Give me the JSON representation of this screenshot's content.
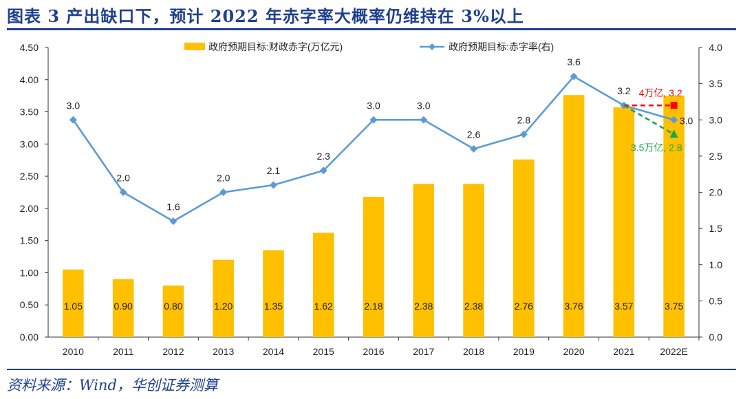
{
  "header": {
    "title": "图表 3 产出缺口下，预计 2022 年赤字率大概率仍维持在 3%以上"
  },
  "footer": {
    "source": "资料来源：Wind，华创证券测算"
  },
  "chart_data": {
    "type": "bar+line",
    "categories": [
      "2010",
      "2011",
      "2012",
      "2013",
      "2014",
      "2015",
      "2016",
      "2017",
      "2018",
      "2019",
      "2020",
      "2021",
      "2022E"
    ],
    "series": [
      {
        "name": "政府预期目标:财政赤字(万亿元)",
        "type": "bar",
        "axis": "left",
        "color": "#ffc000",
        "values": [
          1.05,
          0.9,
          0.8,
          1.2,
          1.35,
          1.62,
          2.18,
          2.38,
          2.38,
          2.76,
          3.76,
          3.57,
          3.75
        ],
        "labels": [
          "1.05",
          "0.90",
          "0.80",
          "1.20",
          "1.35",
          "1.62",
          "2.18",
          "2.38",
          "2.38",
          "2.76",
          "3.76",
          "3.57",
          "3.75"
        ]
      },
      {
        "name": "政府预期目标:赤字率(右)",
        "type": "line",
        "axis": "right",
        "color": "#5b9bd5",
        "values": [
          3.0,
          2.0,
          1.6,
          2.0,
          2.1,
          2.3,
          3.0,
          3.0,
          2.6,
          2.8,
          3.6,
          3.2,
          3.0
        ],
        "labels": [
          "3.0",
          "2.0",
          "1.6",
          "2.0",
          "2.1",
          "2.3",
          "3.0",
          "3.0",
          "2.6",
          "2.8",
          "3.6",
          "3.2",
          ""
        ]
      }
    ],
    "scenarios": [
      {
        "label": "4万亿, 3.2",
        "from_category": "2021",
        "to_category": "2022E",
        "value": 3.2,
        "color": "#ff0000",
        "marker": "square"
      },
      {
        "label": "3.5万亿, 2.8",
        "from_category": "2021",
        "to_category": "2022E",
        "value": 2.8,
        "color": "#1aa64a",
        "marker": "triangle"
      }
    ],
    "endpoint_label": "3.0",
    "y_left": {
      "min": 0,
      "max": 4.5,
      "step": 0.5,
      "ticks": [
        "0.00",
        "0.50",
        "1.00",
        "1.50",
        "2.00",
        "2.50",
        "3.00",
        "3.50",
        "4.00",
        "4.50"
      ]
    },
    "y_right": {
      "min": 0,
      "max": 4.0,
      "step": 0.5,
      "ticks": [
        "0.0",
        "0.5",
        "1.0",
        "1.5",
        "2.0",
        "2.5",
        "3.0",
        "3.5",
        "4.0"
      ]
    },
    "grid": false,
    "legend": "top"
  }
}
